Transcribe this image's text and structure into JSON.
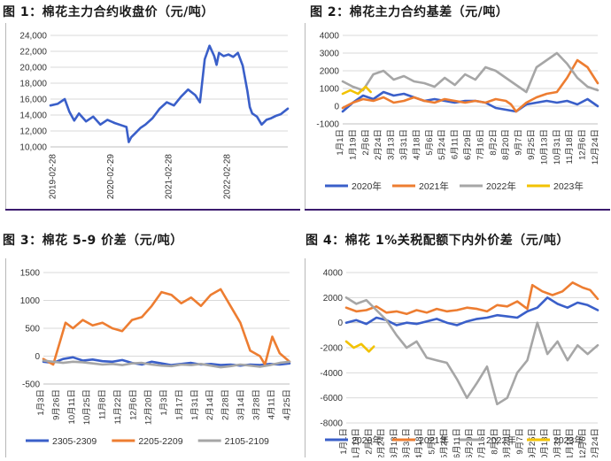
{
  "captions": {
    "fig1": "图 1：棉花主力合约收盘价（元/吨）",
    "fig2": "图 2：棉花主力合约基差（元/吨）",
    "fig3": "图 3：棉花 5-9 价差（元/吨）",
    "fig4": "图 4：棉花 1%关税配额下内外价差（元/吨）"
  },
  "chart_data": [
    {
      "type": "line",
      "title": "图 1：棉花主力合约收盘价（元/吨）",
      "x_ticks": [
        "2019-02-28",
        "2020-02-29",
        "2021-02-28",
        "2022-02-28"
      ],
      "ylim": [
        10000,
        24000
      ],
      "y_ticks": [
        "10,000",
        "12,000",
        "14,000",
        "16,000",
        "18,000",
        "20,000",
        "22,000",
        "24,000"
      ],
      "grid": true,
      "series": [
        {
          "color": "#3a5fc9",
          "x": [
            0,
            0.03,
            0.06,
            0.08,
            0.1,
            0.12,
            0.15,
            0.18,
            0.21,
            0.24,
            0.27,
            0.3,
            0.32,
            0.33,
            0.34,
            0.36,
            0.38,
            0.4,
            0.43,
            0.46,
            0.49,
            0.52,
            0.55,
            0.58,
            0.61,
            0.63,
            0.65,
            0.67,
            0.69,
            0.7,
            0.71,
            0.73,
            0.75,
            0.77,
            0.79,
            0.81,
            0.83,
            0.84,
            0.85,
            0.87,
            0.89,
            0.91,
            0.93,
            0.95,
            0.97,
            1.0
          ],
          "values": [
            15200,
            15400,
            16000,
            14400,
            13300,
            14200,
            13200,
            13800,
            12800,
            13400,
            13000,
            12700,
            12500,
            10600,
            11200,
            11800,
            12400,
            12800,
            13600,
            14800,
            15600,
            15200,
            16300,
            17200,
            16500,
            15600,
            21000,
            22700,
            21400,
            20300,
            21800,
            21400,
            21600,
            21300,
            21800,
            20200,
            17000,
            15000,
            14200,
            13800,
            12800,
            13400,
            13600,
            13900,
            14100,
            14800
          ]
        }
      ]
    },
    {
      "type": "line",
      "title": "图 2：棉花主力合约基差（元/吨）",
      "ylim": [
        -1000,
        4000
      ],
      "y_ticks": [
        "-1000",
        "0",
        "1000",
        "2000",
        "3000",
        "4000"
      ],
      "x_ticks": [
        "1月1日",
        "1月19日",
        "2月6日",
        "2月24日",
        "3月13日",
        "3月31日",
        "4月18日",
        "5月6日",
        "5月24日",
        "6月11日",
        "6月29日",
        "7月16日",
        "8月2日",
        "8月20日",
        "9月7日",
        "9月25日",
        "10月13日",
        "10月31日",
        "11月18日",
        "12月6日",
        "12月24日"
      ],
      "grid": true,
      "series": [
        {
          "name": "2020年",
          "color": "#3a5fc9",
          "x": [
            0,
            0.04,
            0.08,
            0.12,
            0.16,
            0.2,
            0.24,
            0.28,
            0.32,
            0.36,
            0.4,
            0.44,
            0.48,
            0.52,
            0.56,
            0.6,
            0.64,
            0.68,
            0.72,
            0.76,
            0.8,
            0.84,
            0.88,
            0.92,
            0.96,
            1.0
          ],
          "values": [
            -300,
            200,
            600,
            400,
            800,
            600,
            700,
            500,
            300,
            400,
            300,
            200,
            300,
            300,
            200,
            -100,
            -200,
            -300,
            100,
            200,
            300,
            200,
            300,
            100,
            400,
            0
          ]
        },
        {
          "name": "2021年",
          "color": "#ed7d31",
          "x": [
            0,
            0.04,
            0.08,
            0.12,
            0.16,
            0.2,
            0.24,
            0.28,
            0.32,
            0.36,
            0.4,
            0.44,
            0.48,
            0.52,
            0.56,
            0.6,
            0.64,
            0.66,
            0.68,
            0.72,
            0.76,
            0.8,
            0.84,
            0.88,
            0.92,
            0.96,
            1.0
          ],
          "values": [
            -100,
            200,
            400,
            300,
            500,
            200,
            300,
            500,
            300,
            200,
            400,
            300,
            200,
            300,
            200,
            400,
            300,
            100,
            -300,
            200,
            500,
            700,
            800,
            1600,
            2600,
            2200,
            1300
          ]
        },
        {
          "name": "2022年",
          "color": "#a6a6a6",
          "x": [
            0,
            0.04,
            0.08,
            0.12,
            0.16,
            0.2,
            0.24,
            0.28,
            0.32,
            0.36,
            0.4,
            0.44,
            0.48,
            0.52,
            0.56,
            0.6,
            0.64,
            0.68,
            0.72,
            0.76,
            0.8,
            0.84,
            0.88,
            0.92,
            0.96,
            1.0
          ],
          "values": [
            1400,
            1100,
            900,
            1800,
            2000,
            1500,
            1700,
            1400,
            1300,
            1100,
            1600,
            1200,
            1800,
            1500,
            2200,
            2000,
            1600,
            1200,
            800,
            2200,
            2600,
            3000,
            2400,
            1600,
            1100,
            900
          ]
        },
        {
          "name": "2023年",
          "color": "#f2c200",
          "x": [
            0,
            0.03,
            0.06,
            0.09,
            0.11
          ],
          "values": [
            700,
            900,
            700,
            1100,
            800
          ]
        }
      ],
      "legend": "bottom"
    },
    {
      "type": "line",
      "title": "图 3：棉花 5-9 价差（元/吨）",
      "ylim": [
        -500,
        1500
      ],
      "y_ticks": [
        "-500",
        "0",
        "500",
        "1000",
        "1500"
      ],
      "x_ticks": [
        "1月3日",
        "9月26日",
        "10月11日",
        "10月25日",
        "11月8日",
        "11月22日",
        "12月6日",
        "12月20日",
        "1月3日",
        "1月17日",
        "1月31日",
        "2月14日",
        "2月28日",
        "3月14日",
        "3月28日",
        "4月11日",
        "4月25日"
      ],
      "grid": true,
      "series": [
        {
          "name": "2305-2309",
          "color": "#3a5fc9",
          "x": [
            0,
            0.04,
            0.08,
            0.12,
            0.16,
            0.2,
            0.24,
            0.28,
            0.32,
            0.36,
            0.4,
            0.44,
            0.48,
            0.52,
            0.56,
            0.6,
            0.64,
            0.68,
            0.72,
            0.76,
            0.8,
            0.84,
            0.88,
            0.92,
            0.96,
            1.0
          ],
          "values": [
            -100,
            -120,
            -50,
            -20,
            -80,
            -60,
            -90,
            -100,
            -70,
            -120,
            -150,
            -100,
            -130,
            -160,
            -140,
            -120,
            -150,
            -140,
            -160,
            -150,
            -170,
            -150,
            -160,
            -140,
            -150,
            -130
          ]
        },
        {
          "name": "2205-2209",
          "color": "#ed7d31",
          "x": [
            0,
            0.04,
            0.07,
            0.09,
            0.12,
            0.16,
            0.2,
            0.24,
            0.28,
            0.32,
            0.36,
            0.4,
            0.44,
            0.48,
            0.52,
            0.56,
            0.6,
            0.64,
            0.68,
            0.72,
            0.76,
            0.8,
            0.84,
            0.88,
            0.9,
            0.93,
            0.96,
            1.0
          ],
          "values": [
            -50,
            -150,
            300,
            600,
            500,
            650,
            550,
            600,
            500,
            450,
            650,
            700,
            900,
            1150,
            1100,
            950,
            1050,
            900,
            1100,
            1200,
            900,
            600,
            100,
            0,
            -150,
            350,
            50,
            -100
          ]
        },
        {
          "name": "2105-2109",
          "color": "#a6a6a6",
          "x": [
            0,
            0.04,
            0.08,
            0.12,
            0.16,
            0.2,
            0.24,
            0.28,
            0.32,
            0.36,
            0.4,
            0.44,
            0.48,
            0.52,
            0.56,
            0.6,
            0.64,
            0.68,
            0.72,
            0.76,
            0.8,
            0.84,
            0.88,
            0.92,
            0.96,
            1.0
          ],
          "values": [
            -80,
            -100,
            -120,
            -100,
            -110,
            -130,
            -150,
            -140,
            -160,
            -130,
            -120,
            -150,
            -170,
            -180,
            -150,
            -160,
            -140,
            -170,
            -200,
            -180,
            -150,
            -170,
            -190,
            -160,
            -120,
            -100
          ]
        }
      ],
      "legend": "bottom"
    },
    {
      "type": "line",
      "title": "图 4：棉花 1%关税配额下内外价差（元/吨）",
      "ylim": [
        -8000,
        4000
      ],
      "y_ticks": [
        "-8000",
        "-6000",
        "-4000",
        "-2000",
        "0",
        "2000",
        "4000"
      ],
      "x_ticks": [
        "1月1日",
        "1月19日",
        "2月6日",
        "2月24日",
        "3月13日",
        "3月31日",
        "4月18日",
        "5月6日",
        "5月24日",
        "6月11日",
        "6月29日",
        "7月16日",
        "8月2日",
        "8月20日",
        "9月7日",
        "9月25日",
        "10月13日",
        "10月31日",
        "11月18日",
        "12月6日",
        "12月24日"
      ],
      "grid": true,
      "series": [
        {
          "name": "2020年",
          "color": "#3a5fc9",
          "x": [
            0,
            0.04,
            0.08,
            0.12,
            0.16,
            0.2,
            0.24,
            0.28,
            0.32,
            0.36,
            0.4,
            0.44,
            0.48,
            0.52,
            0.56,
            0.6,
            0.64,
            0.68,
            0.72,
            0.76,
            0.8,
            0.84,
            0.88,
            0.92,
            0.96,
            1.0
          ],
          "values": [
            0,
            200,
            -100,
            400,
            200,
            -200,
            0,
            -100,
            100,
            300,
            0,
            -200,
            100,
            300,
            400,
            600,
            500,
            400,
            900,
            1200,
            2000,
            1500,
            1200,
            1600,
            1400,
            1000
          ]
        },
        {
          "name": "2021年",
          "color": "#ed7d31",
          "x": [
            0,
            0.04,
            0.08,
            0.12,
            0.16,
            0.2,
            0.24,
            0.28,
            0.32,
            0.36,
            0.4,
            0.44,
            0.48,
            0.52,
            0.56,
            0.6,
            0.64,
            0.68,
            0.72,
            0.74,
            0.78,
            0.82,
            0.86,
            0.9,
            0.94,
            0.97,
            1.0
          ],
          "values": [
            1200,
            900,
            1000,
            1300,
            800,
            900,
            700,
            1000,
            800,
            1100,
            900,
            1000,
            1200,
            1100,
            900,
            1400,
            1300,
            1700,
            1100,
            3000,
            2500,
            2200,
            2500,
            3200,
            2800,
            2600,
            1900
          ]
        },
        {
          "name": "2022年",
          "color": "#a6a6a6",
          "x": [
            0,
            0.04,
            0.08,
            0.12,
            0.16,
            0.2,
            0.24,
            0.28,
            0.32,
            0.36,
            0.4,
            0.44,
            0.48,
            0.52,
            0.56,
            0.6,
            0.64,
            0.68,
            0.72,
            0.76,
            0.8,
            0.84,
            0.88,
            0.92,
            0.96,
            1.0
          ],
          "values": [
            2000,
            1500,
            1800,
            1000,
            200,
            -1000,
            -2000,
            -1500,
            -2800,
            -3000,
            -3200,
            -4500,
            -6000,
            -4800,
            -3500,
            -6500,
            -6000,
            -4000,
            -3000,
            0,
            -2500,
            -1500,
            -3000,
            -1800,
            -2500,
            -1800
          ]
        },
        {
          "name": "2023年",
          "color": "#f2c200",
          "x": [
            0,
            0.03,
            0.06,
            0.09,
            0.11
          ],
          "values": [
            -1500,
            -2000,
            -1700,
            -2300,
            -1900
          ]
        }
      ],
      "legend": "bottom"
    }
  ]
}
